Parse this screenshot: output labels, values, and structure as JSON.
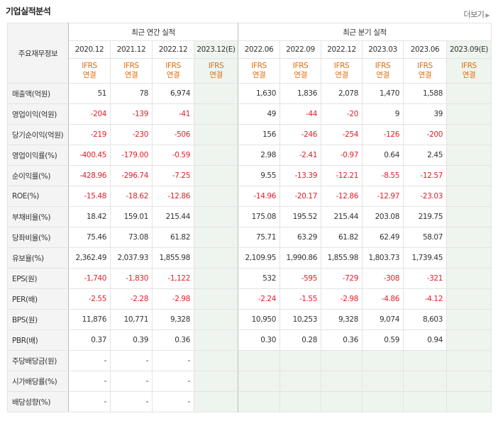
{
  "section": {
    "title": "기업실적분석",
    "more_label": "더보기"
  },
  "header": {
    "label": "주요재무정보",
    "annual_group": "최근 연간 실적",
    "quarter_group": "최근 분기 실적",
    "annual_periods": [
      "2020.12",
      "2021.12",
      "2022.12",
      "2023.12(E)"
    ],
    "quarter_periods": [
      "2022.06",
      "2022.09",
      "2022.12",
      "2023.03",
      "2023.06",
      "2023.09(E)"
    ],
    "ifrs_top": "IFRS",
    "ifrs_bottom": "연결"
  },
  "rows": [
    {
      "label": "매출액(억원)",
      "values": [
        "51",
        "78",
        "6,974",
        "",
        "1,630",
        "1,836",
        "2,078",
        "1,470",
        "1,588",
        ""
      ]
    },
    {
      "label": "영업이익(억원)",
      "values": [
        "-204",
        "-139",
        "-41",
        "",
        "49",
        "-44",
        "-20",
        "9",
        "39",
        ""
      ]
    },
    {
      "label": "당기순이익(억원)",
      "values": [
        "-219",
        "-230",
        "-506",
        "",
        "156",
        "-246",
        "-254",
        "-126",
        "-200",
        ""
      ]
    },
    {
      "label": "영업이익률(%)",
      "values": [
        "-400.45",
        "-179.00",
        "-0.59",
        "",
        "2.98",
        "-2.41",
        "-0.97",
        "0.64",
        "2.45",
        ""
      ]
    },
    {
      "label": "순이익률(%)",
      "values": [
        "-428.96",
        "-296.74",
        "-7.25",
        "",
        "9.55",
        "-13.39",
        "-12.21",
        "-8.55",
        "-12.57",
        ""
      ]
    },
    {
      "label": "ROE(%)",
      "values": [
        "-15.48",
        "-18.62",
        "-12.86",
        "",
        "-14.96",
        "-20.17",
        "-12.86",
        "-12.97",
        "-23.03",
        ""
      ]
    },
    {
      "label": "부채비율(%)",
      "values": [
        "18.42",
        "159.01",
        "215.44",
        "",
        "175.08",
        "195.52",
        "215.44",
        "203.08",
        "219.75",
        ""
      ]
    },
    {
      "label": "당좌비율(%)",
      "values": [
        "75.46",
        "73.08",
        "61.82",
        "",
        "75.71",
        "63.29",
        "61.82",
        "62.49",
        "58.07",
        ""
      ]
    },
    {
      "label": "유보율(%)",
      "values": [
        "2,362.49",
        "2,037.93",
        "1,855.98",
        "",
        "2,109.95",
        "1,990.86",
        "1,855.98",
        "1,803.73",
        "1,739.45",
        ""
      ]
    },
    {
      "label": "EPS(원)",
      "values": [
        "-1,740",
        "-1,830",
        "-1,122",
        "",
        "532",
        "-595",
        "-729",
        "-308",
        "-321",
        ""
      ]
    },
    {
      "label": "PER(배)",
      "values": [
        "-2.55",
        "-2.28",
        "-2.98",
        "",
        "-2.24",
        "-1.55",
        "-2.98",
        "-4.86",
        "-4.12",
        ""
      ]
    },
    {
      "label": "BPS(원)",
      "values": [
        "11,876",
        "10,771",
        "9,328",
        "",
        "10,950",
        "10,253",
        "9,328",
        "9,074",
        "8,603",
        ""
      ]
    },
    {
      "label": "PBR(배)",
      "values": [
        "0.37",
        "0.39",
        "0.36",
        "",
        "0.30",
        "0.28",
        "0.36",
        "0.59",
        "0.94",
        ""
      ]
    },
    {
      "label": "주당배당금(원)",
      "values": [
        "-",
        "-",
        "-",
        "",
        "",
        "",
        "",
        "",
        "",
        ""
      ]
    },
    {
      "label": "시가배당률(%)",
      "values": [
        "-",
        "-",
        "-",
        "",
        "",
        "",
        "",
        "",
        "",
        ""
      ]
    },
    {
      "label": "배당성향(%)",
      "values": [
        "-",
        "-",
        "-",
        "",
        "",
        "",
        "",
        "",
        "",
        ""
      ]
    }
  ]
}
